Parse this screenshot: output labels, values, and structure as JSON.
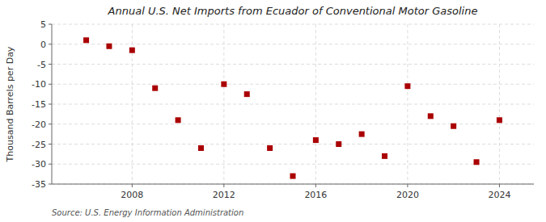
{
  "chart_data": {
    "type": "scatter",
    "title": "Annual U.S. Net Imports from Ecuador of Conventional Motor Gasoline",
    "y_label": "Thousand Barrels per Day",
    "annotations": [
      "Source: U.S. Energy Information Administration"
    ],
    "x": [
      2006,
      2007,
      2008,
      2009,
      2010,
      2011,
      2012,
      2013,
      2014,
      2015,
      2016,
      2017,
      2018,
      2019,
      2020,
      2021,
      2022,
      2023,
      2024
    ],
    "values": [
      1.0,
      -0.5,
      -1.5,
      -11.0,
      -19.0,
      -26.0,
      -10.0,
      -12.5,
      -26.0,
      -33.0,
      -24.0,
      -25.0,
      -22.5,
      -28.0,
      -10.5,
      -18.0,
      -20.5,
      -29.5,
      -19.0
    ],
    "color": "#aa0000",
    "marker": "square",
    "xlim": [
      2004.5,
      2025.5
    ],
    "xticks": [
      2008,
      2012,
      2016,
      2020,
      2024
    ],
    "ylim": [
      -35,
      5
    ],
    "yticks": [
      5,
      0,
      -5,
      -10,
      -15,
      -20,
      -25,
      -30,
      -35
    ],
    "grid": true
  }
}
